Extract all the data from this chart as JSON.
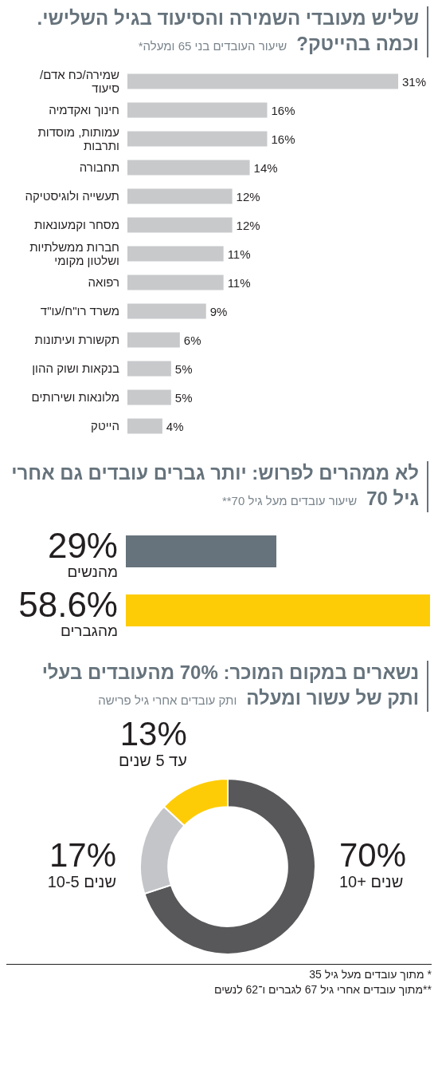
{
  "chart_data": [
    {
      "type": "bar",
      "orientation": "horizontal",
      "title": "שליש מעובדי השמירה והסיעוד בגיל השלישי. וכמה בהייטק?",
      "subtitle": "שיעור העובדים בני 65 ומעלה*",
      "categories": [
        "שמירה/כח אדם/ סיעוד",
        "חינוך ואקדמיה",
        "עמותות, מוסדות ותרבות",
        "תחבורה",
        "תעשייה ולוגיסטיקה",
        "מסחר וקמעונאות",
        "חברות ממשלתיות ושלטון מקומי",
        "רפואה",
        "משרד רו\"ח/עו\"ד",
        "תקשורת ועיתונות",
        "בנקאות ושוק ההון",
        "מלונאות ושירותים",
        "הייטק"
      ],
      "values": [
        31,
        16,
        16,
        14,
        12,
        12,
        11,
        11,
        9,
        6,
        5,
        5,
        4
      ],
      "value_labels": [
        "31%",
        "16%",
        "16%",
        "14%",
        "12%",
        "12%",
        "11%",
        "11%",
        "9%",
        "6%",
        "5%",
        "5%",
        "4%"
      ],
      "color": "#c8c9cb"
    },
    {
      "type": "bar",
      "orientation": "horizontal",
      "title": "לא ממהרים לפרוש: יותר גברים עובדים גם אחרי גיל 70",
      "subtitle": "שיעור עובדים מעל גיל 70**",
      "categories": [
        "מהנשים",
        "מהגברים"
      ],
      "values": [
        29,
        58.6
      ],
      "value_labels": [
        "29%",
        "58.6%"
      ],
      "colors": [
        "#66737c",
        "#fecc07"
      ]
    },
    {
      "type": "donut",
      "title": "נשארים במקום המוכר: 70% מהעובדים בעלי ותק של עשור ומעלה",
      "subtitle": "ותק עובדים אחרי גיל פרישה",
      "categories": [
        "10+ שנים",
        "10-5 שנים",
        "עד 5 שנים"
      ],
      "values": [
        70,
        17,
        13
      ],
      "value_labels": [
        "70%",
        "17%",
        "13%"
      ],
      "colors": [
        "#58585a",
        "#c4c5c8",
        "#fecc07"
      ],
      "annotations": [
        "* מתוך עובדים מעל גיל 35",
        "**מתוך עובדים אחרי גיל 67 לגברים ו־62 לנשים"
      ]
    }
  ]
}
